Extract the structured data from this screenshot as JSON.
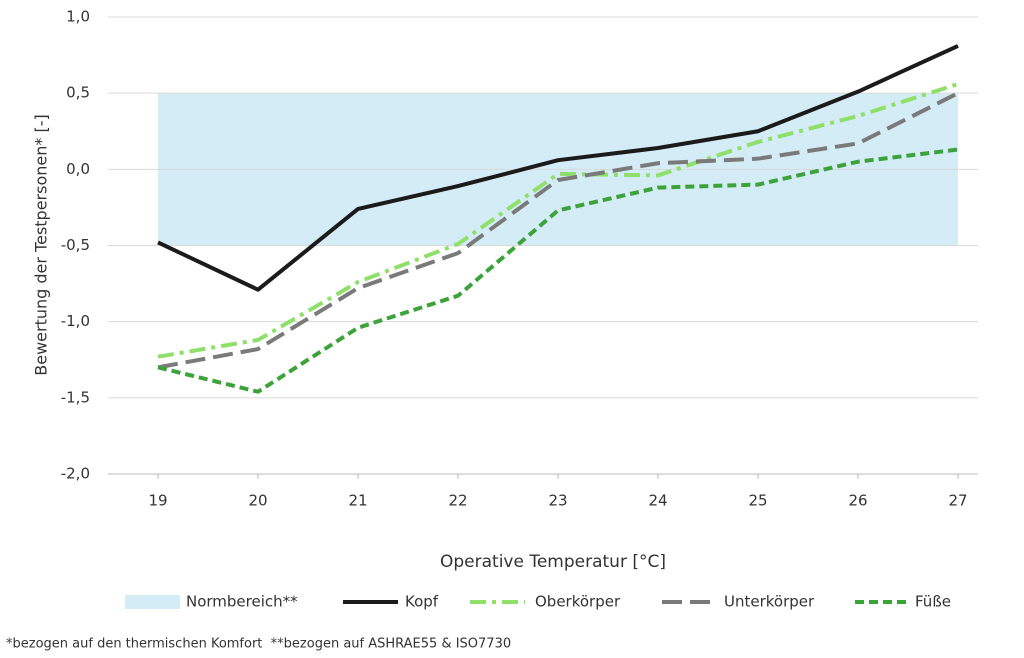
{
  "chart_data": {
    "type": "line",
    "x_label": "Operative Temperatur [°C]",
    "y_label": "Bewertung der Testpersonen* [-]",
    "footnote": "*bezogen auf den thermischen Komfort  **bezogen auf ASHRAE55 & ISO7730",
    "x": [
      19,
      20,
      21,
      22,
      23,
      24,
      25,
      26,
      27
    ],
    "xlim": [
      18.5,
      27.2
    ],
    "xticks": [
      19,
      20,
      21,
      22,
      23,
      24,
      25,
      26,
      27
    ],
    "ylim": [
      -2,
      1
    ],
    "yticks": [
      {
        "value": -2,
        "label": "-2,0"
      },
      {
        "value": -1.5,
        "label": "-1,5"
      },
      {
        "value": -1,
        "label": "-1,0"
      },
      {
        "value": -0.5,
        "label": "-0,5"
      },
      {
        "value": 0,
        "label": "0,0"
      },
      {
        "value": 0.5,
        "label": "0,5"
      },
      {
        "value": 1,
        "label": "1,0"
      }
    ],
    "grid": true,
    "legend": "bottom",
    "band": {
      "name": "Normbereich**",
      "color": "#d4ecf6",
      "range": [
        -0.5,
        0.5
      ]
    },
    "series": [
      {
        "name": "Kopf",
        "color": "#1b1b1b",
        "style": "solid",
        "values": [
          -0.48,
          -0.79,
          -0.26,
          -0.11,
          0.06,
          0.14,
          0.25,
          0.51,
          0.81
        ]
      },
      {
        "name": "Oberkörper",
        "color": "#8ee06a",
        "style": "dash-dot",
        "values": [
          -1.23,
          -1.12,
          -0.74,
          -0.49,
          -0.03,
          -0.04,
          0.18,
          0.35,
          0.56
        ]
      },
      {
        "name": "Unterkörper",
        "color": "#7a7a7a",
        "style": "long-dash",
        "values": [
          -1.3,
          -1.18,
          -0.78,
          -0.55,
          -0.07,
          0.04,
          0.07,
          0.17,
          0.5
        ]
      },
      {
        "name": "Füße",
        "color": "#3ca23a",
        "style": "dash",
        "values": [
          -1.3,
          -1.46,
          -1.04,
          -0.83,
          -0.27,
          -0.12,
          -0.1,
          0.05,
          0.13
        ]
      }
    ]
  }
}
